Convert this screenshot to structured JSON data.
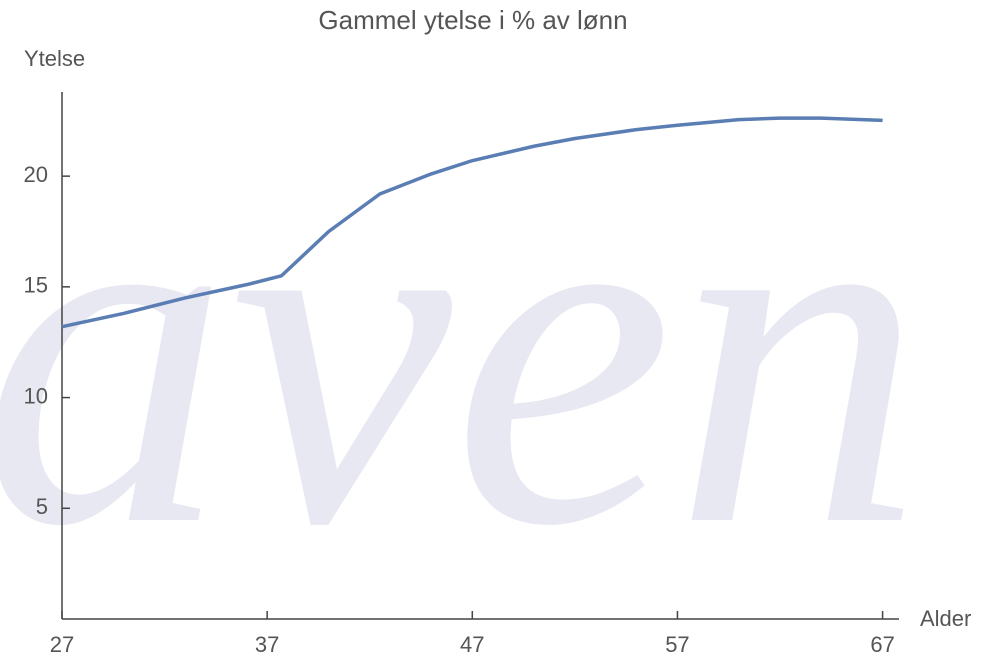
{
  "chart_data": {
    "type": "line",
    "title": "Gammel ytelse i % av lønn",
    "watermark": "aven",
    "y_label": "Ytelse",
    "x_label": "Alder",
    "series": [
      {
        "name": "Ytelse",
        "color": "#5a7db3",
        "x": [
          27,
          30,
          33,
          36,
          37.7,
          40,
          42.5,
          45,
          47,
          50,
          52,
          55,
          57,
          60,
          62,
          64,
          67
        ],
        "values": [
          13.2,
          13.8,
          14.5,
          15.1,
          15.5,
          17.5,
          19.2,
          20.1,
          20.7,
          21.35,
          21.7,
          22.1,
          22.3,
          22.55,
          22.62,
          22.62,
          22.52
        ]
      }
    ],
    "xlim": [
      27,
      67.8
    ],
    "xticks": [
      27,
      37,
      47,
      57,
      67
    ],
    "ylim": [
      0,
      23.8
    ],
    "yticks": [
      5,
      10,
      15,
      20
    ]
  }
}
